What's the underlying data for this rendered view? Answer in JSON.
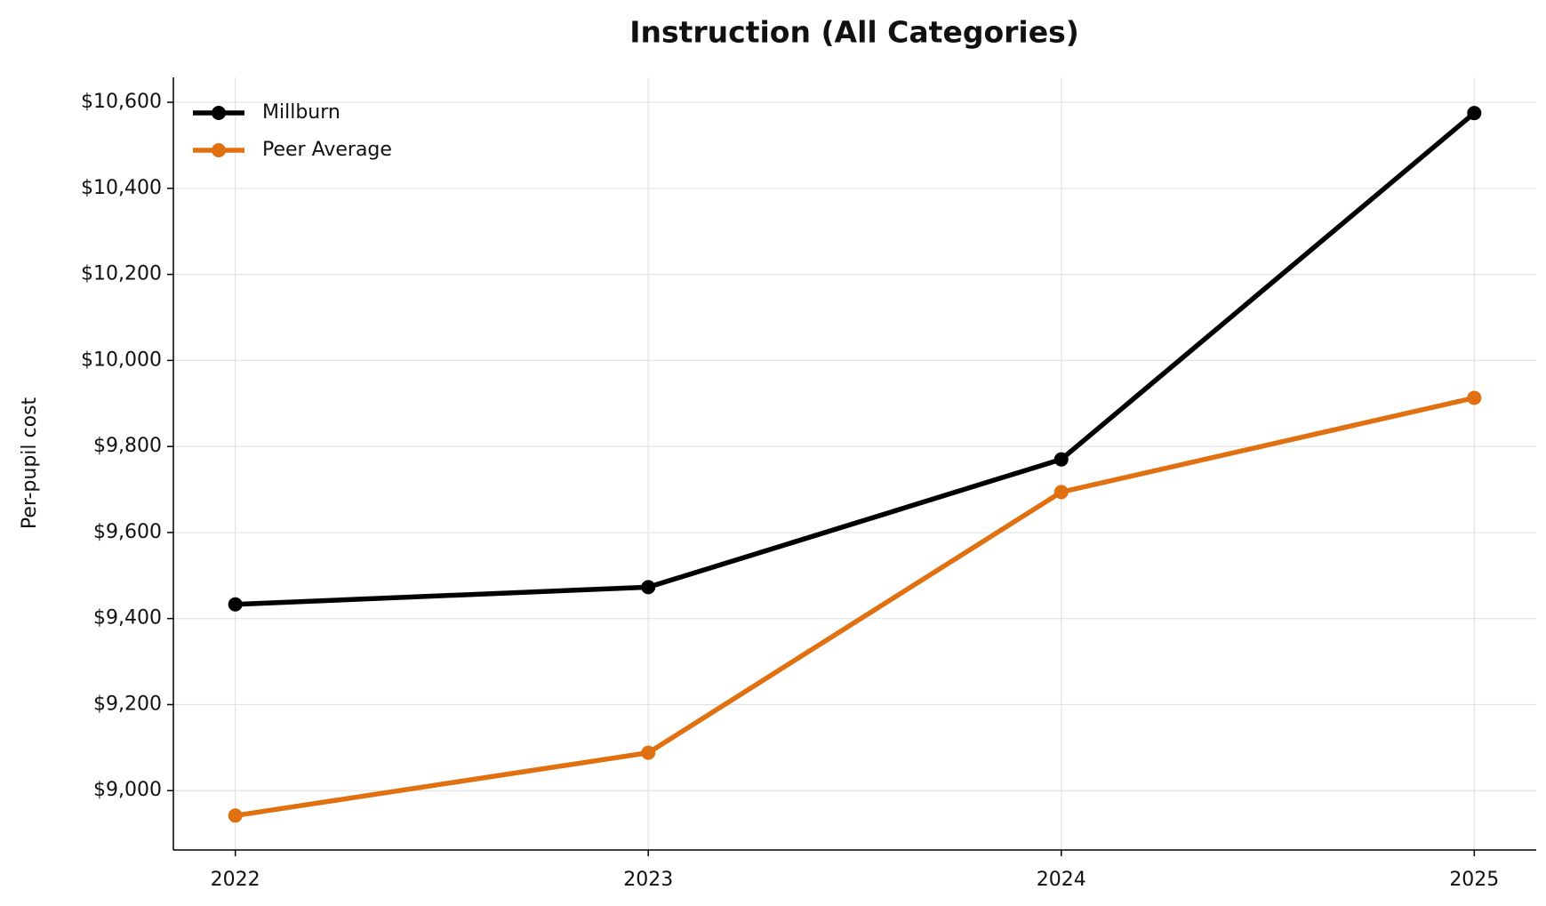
{
  "chart_data": {
    "type": "line",
    "title": "Instruction (All Categories)",
    "y_label": "Per-pupil cost",
    "x": [
      2022,
      2023,
      2024,
      2025
    ],
    "xlim": [
      2021.85,
      2025.15
    ],
    "xticks": [
      2022,
      2023,
      2024,
      2025
    ],
    "ylim": [
      8862,
      10658
    ],
    "yticks": [
      {
        "value": 9000,
        "label": "$9,000"
      },
      {
        "value": 9200,
        "label": "$9,200"
      },
      {
        "value": 9400,
        "label": "$9,400"
      },
      {
        "value": 9600,
        "label": "$9,600"
      },
      {
        "value": 9800,
        "label": "$9,800"
      },
      {
        "value": 10000,
        "label": "$10,000"
      },
      {
        "value": 10200,
        "label": "$10,200"
      },
      {
        "value": 10400,
        "label": "$10,400"
      },
      {
        "value": 10600,
        "label": "$10,600"
      }
    ],
    "grid": true,
    "legend": "upper left",
    "series": [
      {
        "name": "Millburn",
        "color": "#000000",
        "values": [
          9433,
          9473,
          9770,
          10575
        ]
      },
      {
        "name": "Peer Average",
        "color": "#e07010",
        "values": [
          8942,
          9088,
          9694,
          9913
        ]
      }
    ]
  }
}
